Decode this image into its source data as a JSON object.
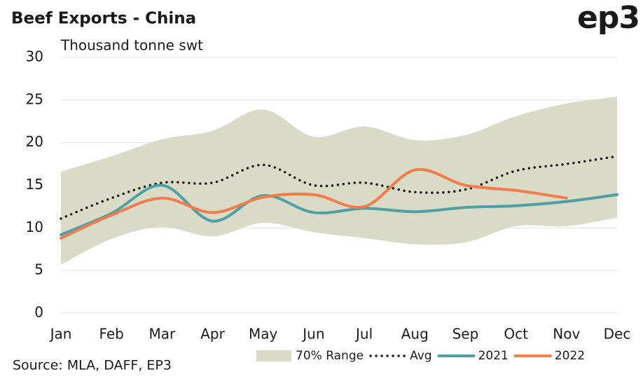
{
  "chart_data": {
    "type": "line",
    "title": "Beef Exports - China",
    "logo": "ep3",
    "subtitle": "Thousand tonne swt",
    "source": "Source: MLA, DAFF, EP3",
    "categories": [
      "Jan",
      "Feb",
      "Mar",
      "Apr",
      "May",
      "Jun",
      "Jul",
      "Aug",
      "Sep",
      "Oct",
      "Nov",
      "Dec"
    ],
    "ylim": [
      0,
      30
    ],
    "yticks": [
      0,
      5,
      10,
      15,
      20,
      25,
      30
    ],
    "grid": true,
    "legend": "bottom",
    "smooth": true,
    "series": [
      {
        "name": "70% Range",
        "kind": "range",
        "color": "#d9dbc7",
        "values": [
          16.6,
          18.4,
          20.4,
          21.4,
          23.9,
          20.7,
          21.9,
          20.3,
          20.9,
          23.1,
          24.6,
          25.4
        ],
        "low": [
          5.7,
          8.7,
          10.1,
          9.0,
          10.6,
          9.5,
          8.8,
          8.1,
          8.3,
          10.2,
          10.2,
          11.2
        ]
      },
      {
        "name": "Avg",
        "kind": "dotted",
        "color": "#1a1a1a",
        "values": [
          11.1,
          13.5,
          15.3,
          15.3,
          17.4,
          15.0,
          15.3,
          14.2,
          14.5,
          16.7,
          17.5,
          18.4
        ]
      },
      {
        "name": "2021",
        "kind": "solid",
        "color": "#4e9fa6",
        "values": [
          9.2,
          11.7,
          15.0,
          10.8,
          13.8,
          11.8,
          12.3,
          11.9,
          12.4,
          12.6,
          13.1,
          13.9
        ]
      },
      {
        "name": "2022",
        "kind": "solid",
        "color": "#f47b4a",
        "values": [
          8.8,
          11.5,
          13.5,
          11.8,
          13.6,
          13.9,
          12.5,
          16.8,
          15.0,
          14.4,
          13.5,
          null
        ]
      }
    ]
  }
}
